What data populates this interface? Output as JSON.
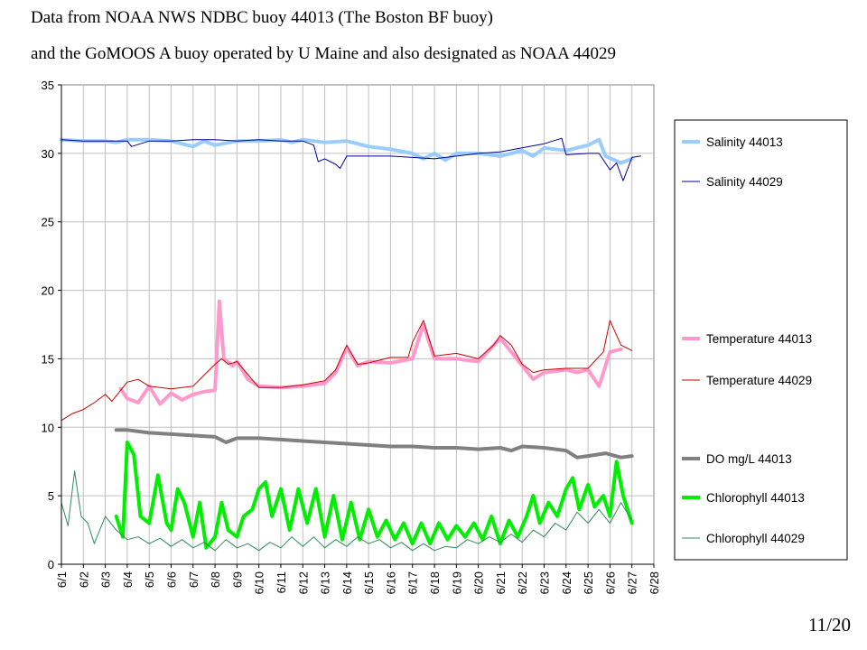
{
  "title_line1": "Data from NOAA NWS NDBC buoy 44013 (The Boston BF buoy)",
  "title_line2": "and the GoMOOS A buoy operated by U Maine and also designated as NOAA 44029",
  "page_number": "11/20",
  "chart_data": {
    "type": "line",
    "ylim": [
      0,
      35
    ],
    "yticks": [
      0,
      5,
      10,
      15,
      20,
      25,
      30,
      35
    ],
    "xticks": [
      "6/1",
      "6/2",
      "6/3",
      "6/4",
      "6/5",
      "6/6",
      "6/7",
      "6/8",
      "6/9",
      "6/10",
      "6/11",
      "6/12",
      "6/13",
      "6/14",
      "6/15",
      "6/16",
      "6/17",
      "6/18",
      "6/19",
      "6/20",
      "6/21",
      "6/22",
      "6/23",
      "6/24",
      "6/25",
      "6/26",
      "6/27",
      "6/28"
    ],
    "grid": true,
    "legend_position": "right",
    "series": [
      {
        "name": "Salinity 44013",
        "color": "#99ccff",
        "width": 4,
        "points": [
          [
            0,
            31.0
          ],
          [
            1,
            30.9
          ],
          [
            2,
            30.9
          ],
          [
            2.5,
            30.8
          ],
          [
            3,
            31.0
          ],
          [
            4,
            31.0
          ],
          [
            5,
            30.9
          ],
          [
            6,
            30.5
          ],
          [
            6.5,
            30.9
          ],
          [
            7,
            30.6
          ],
          [
            8,
            30.9
          ],
          [
            9,
            30.9
          ],
          [
            10,
            31.0
          ],
          [
            10.5,
            30.8
          ],
          [
            11,
            31.0
          ],
          [
            12,
            30.8
          ],
          [
            13,
            30.9
          ],
          [
            14,
            30.5
          ],
          [
            15,
            30.3
          ],
          [
            16,
            30.0
          ],
          [
            16.5,
            29.6
          ],
          [
            17,
            30.0
          ],
          [
            17.5,
            29.5
          ],
          [
            18,
            30.0
          ],
          [
            19,
            30.0
          ],
          [
            20,
            29.8
          ],
          [
            21,
            30.2
          ],
          [
            21.5,
            29.8
          ],
          [
            22,
            30.4
          ],
          [
            23,
            30.2
          ],
          [
            24,
            30.6
          ],
          [
            24.5,
            31.0
          ],
          [
            24.8,
            29.8
          ],
          [
            25.5,
            29.3
          ],
          [
            26,
            29.6
          ]
        ]
      },
      {
        "name": "Salinity 44029",
        "color": "#000099",
        "width": 1,
        "points": [
          [
            0,
            31.0
          ],
          [
            1,
            30.9
          ],
          [
            2,
            30.9
          ],
          [
            3,
            30.9
          ],
          [
            3.2,
            30.5
          ],
          [
            4,
            30.9
          ],
          [
            5,
            30.9
          ],
          [
            6,
            31.0
          ],
          [
            7,
            31.0
          ],
          [
            8,
            30.9
          ],
          [
            9,
            31.0
          ],
          [
            10,
            30.9
          ],
          [
            11,
            30.9
          ],
          [
            11.5,
            30.6
          ],
          [
            11.7,
            29.4
          ],
          [
            12,
            29.6
          ],
          [
            12.5,
            29.2
          ],
          [
            12.7,
            28.9
          ],
          [
            13,
            29.8
          ],
          [
            14,
            29.8
          ],
          [
            15,
            29.8
          ],
          [
            16,
            29.7
          ],
          [
            17,
            29.6
          ],
          [
            18,
            29.8
          ],
          [
            19,
            30.0
          ],
          [
            20,
            30.1
          ],
          [
            21,
            30.4
          ],
          [
            22,
            30.7
          ],
          [
            22.8,
            31.1
          ],
          [
            23,
            29.9
          ],
          [
            24,
            30.0
          ],
          [
            24.5,
            30.0
          ],
          [
            25,
            28.8
          ],
          [
            25.3,
            29.3
          ],
          [
            25.6,
            28.0
          ],
          [
            26,
            29.7
          ],
          [
            26.4,
            29.8
          ]
        ]
      },
      {
        "name": "Temperature 44013",
        "color": "#ff99cc",
        "width": 4,
        "points": [
          [
            2.7,
            12.8
          ],
          [
            3,
            12.1
          ],
          [
            3.5,
            11.8
          ],
          [
            4,
            13.0
          ],
          [
            4.5,
            11.7
          ],
          [
            5,
            12.5
          ],
          [
            5.5,
            12.0
          ],
          [
            6,
            12.4
          ],
          [
            6.5,
            12.6
          ],
          [
            7,
            12.7
          ],
          [
            7.2,
            19.2
          ],
          [
            7.4,
            15.0
          ],
          [
            7.8,
            14.5
          ],
          [
            8,
            14.8
          ],
          [
            8.5,
            13.5
          ],
          [
            9,
            13.0
          ],
          [
            10,
            12.9
          ],
          [
            11,
            13.0
          ],
          [
            12,
            13.2
          ],
          [
            12.5,
            14.0
          ],
          [
            13,
            15.8
          ],
          [
            13.5,
            14.5
          ],
          [
            14,
            14.8
          ],
          [
            15,
            14.7
          ],
          [
            16,
            15.0
          ],
          [
            16.5,
            17.5
          ],
          [
            17,
            15.0
          ],
          [
            18,
            15.0
          ],
          [
            19,
            14.8
          ],
          [
            20,
            16.5
          ],
          [
            21,
            14.5
          ],
          [
            21.5,
            13.5
          ],
          [
            22,
            14.0
          ],
          [
            23,
            14.2
          ],
          [
            23.5,
            14.0
          ],
          [
            24,
            14.2
          ],
          [
            24.5,
            13.0
          ],
          [
            25,
            15.5
          ],
          [
            25.5,
            15.7
          ]
        ]
      },
      {
        "name": "Temperature 44029",
        "color": "#cc0000",
        "width": 1,
        "points": [
          [
            0,
            10.5
          ],
          [
            0.5,
            11.0
          ],
          [
            1,
            11.3
          ],
          [
            1.5,
            11.8
          ],
          [
            2,
            12.4
          ],
          [
            2.3,
            11.9
          ],
          [
            2.7,
            12.7
          ],
          [
            3,
            13.3
          ],
          [
            3.5,
            13.5
          ],
          [
            4,
            13.0
          ],
          [
            5,
            12.8
          ],
          [
            6,
            13.0
          ],
          [
            6.5,
            13.8
          ],
          [
            7,
            14.6
          ],
          [
            7.3,
            15.0
          ],
          [
            7.6,
            14.6
          ],
          [
            8,
            14.8
          ],
          [
            9,
            12.9
          ],
          [
            10,
            12.9
          ],
          [
            11,
            13.1
          ],
          [
            12,
            13.4
          ],
          [
            12.5,
            14.2
          ],
          [
            13,
            16.0
          ],
          [
            13.5,
            14.6
          ],
          [
            14,
            14.7
          ],
          [
            15,
            15.1
          ],
          [
            15.8,
            15.1
          ],
          [
            16,
            16.2
          ],
          [
            16.5,
            17.8
          ],
          [
            17,
            15.2
          ],
          [
            18,
            15.4
          ],
          [
            19,
            15.0
          ],
          [
            19.7,
            16.0
          ],
          [
            20,
            16.7
          ],
          [
            20.5,
            16.0
          ],
          [
            21,
            14.6
          ],
          [
            21.5,
            14.0
          ],
          [
            22,
            14.2
          ],
          [
            23,
            14.3
          ],
          [
            24,
            14.3
          ],
          [
            24.7,
            15.5
          ],
          [
            25,
            17.8
          ],
          [
            25.5,
            16.0
          ],
          [
            26,
            15.6
          ]
        ]
      },
      {
        "name": "DO mg/L 44013",
        "color": "#808080",
        "width": 4,
        "points": [
          [
            2.5,
            9.8
          ],
          [
            3,
            9.8
          ],
          [
            4,
            9.6
          ],
          [
            5,
            9.5
          ],
          [
            6,
            9.4
          ],
          [
            7,
            9.3
          ],
          [
            7.5,
            8.9
          ],
          [
            8,
            9.2
          ],
          [
            9,
            9.2
          ],
          [
            10,
            9.1
          ],
          [
            11,
            9.0
          ],
          [
            12,
            8.9
          ],
          [
            13,
            8.8
          ],
          [
            14,
            8.7
          ],
          [
            15,
            8.6
          ],
          [
            16,
            8.6
          ],
          [
            17,
            8.5
          ],
          [
            18,
            8.5
          ],
          [
            19,
            8.4
          ],
          [
            20,
            8.5
          ],
          [
            20.5,
            8.3
          ],
          [
            21,
            8.6
          ],
          [
            22,
            8.5
          ],
          [
            23,
            8.3
          ],
          [
            23.5,
            7.8
          ],
          [
            24,
            7.9
          ],
          [
            24.8,
            8.1
          ],
          [
            25.5,
            7.8
          ],
          [
            26,
            7.9
          ]
        ]
      },
      {
        "name": "Chlorophyll 44013",
        "color": "#00ee00",
        "width": 4,
        "points": [
          [
            2.5,
            3.5
          ],
          [
            2.8,
            2.0
          ],
          [
            3,
            8.9
          ],
          [
            3.3,
            8.0
          ],
          [
            3.6,
            3.5
          ],
          [
            4,
            3.0
          ],
          [
            4.4,
            6.5
          ],
          [
            4.8,
            3.0
          ],
          [
            5,
            2.5
          ],
          [
            5.3,
            5.5
          ],
          [
            5.6,
            4.5
          ],
          [
            6,
            2.0
          ],
          [
            6.3,
            4.5
          ],
          [
            6.6,
            1.2
          ],
          [
            7,
            2.0
          ],
          [
            7.3,
            4.5
          ],
          [
            7.6,
            2.5
          ],
          [
            8,
            2.0
          ],
          [
            8.3,
            3.5
          ],
          [
            8.7,
            4.0
          ],
          [
            9,
            5.5
          ],
          [
            9.3,
            6.0
          ],
          [
            9.6,
            3.5
          ],
          [
            10,
            5.5
          ],
          [
            10.4,
            2.5
          ],
          [
            10.8,
            5.5
          ],
          [
            11.2,
            3.0
          ],
          [
            11.6,
            5.5
          ],
          [
            12,
            2.0
          ],
          [
            12.4,
            5.0
          ],
          [
            12.8,
            1.8
          ],
          [
            13.2,
            4.5
          ],
          [
            13.6,
            1.8
          ],
          [
            14,
            4.0
          ],
          [
            14.4,
            2.0
          ],
          [
            14.8,
            3.2
          ],
          [
            15.2,
            1.8
          ],
          [
            15.6,
            3.0
          ],
          [
            16,
            1.5
          ],
          [
            16.4,
            3.0
          ],
          [
            16.8,
            1.5
          ],
          [
            17.2,
            3.0
          ],
          [
            17.6,
            1.8
          ],
          [
            18,
            2.8
          ],
          [
            18.4,
            2.0
          ],
          [
            18.8,
            3.0
          ],
          [
            19.2,
            1.8
          ],
          [
            19.6,
            3.5
          ],
          [
            20,
            1.5
          ],
          [
            20.4,
            3.2
          ],
          [
            20.8,
            2.0
          ],
          [
            21.2,
            3.5
          ],
          [
            21.5,
            5.0
          ],
          [
            21.8,
            3.0
          ],
          [
            22.2,
            4.5
          ],
          [
            22.6,
            3.5
          ],
          [
            23,
            5.5
          ],
          [
            23.3,
            6.3
          ],
          [
            23.6,
            4.0
          ],
          [
            24,
            5.8
          ],
          [
            24.3,
            4.2
          ],
          [
            24.7,
            5.0
          ],
          [
            25,
            3.5
          ],
          [
            25.3,
            7.5
          ],
          [
            25.6,
            5.0
          ],
          [
            26,
            3.0
          ]
        ]
      },
      {
        "name": "Chlorophyll 44029",
        "color": "#2e8b57",
        "width": 1,
        "points": [
          [
            0,
            4.5
          ],
          [
            0.3,
            2.8
          ],
          [
            0.6,
            6.8
          ],
          [
            0.9,
            3.5
          ],
          [
            1.2,
            3.0
          ],
          [
            1.5,
            1.5
          ],
          [
            2,
            3.5
          ],
          [
            2.5,
            2.5
          ],
          [
            3,
            1.8
          ],
          [
            3.5,
            2.0
          ],
          [
            4,
            1.5
          ],
          [
            4.5,
            1.9
          ],
          [
            5,
            1.3
          ],
          [
            5.5,
            1.8
          ],
          [
            6,
            1.2
          ],
          [
            6.5,
            1.6
          ],
          [
            7,
            1.0
          ],
          [
            7.5,
            1.8
          ],
          [
            8,
            1.2
          ],
          [
            8.5,
            1.5
          ],
          [
            9,
            1.0
          ],
          [
            9.5,
            1.6
          ],
          [
            10,
            1.2
          ],
          [
            10.5,
            2.0
          ],
          [
            11,
            1.3
          ],
          [
            11.5,
            2.0
          ],
          [
            12,
            1.2
          ],
          [
            12.5,
            1.8
          ],
          [
            13,
            1.3
          ],
          [
            13.5,
            2.0
          ],
          [
            14,
            1.5
          ],
          [
            14.5,
            1.8
          ],
          [
            15,
            1.2
          ],
          [
            15.5,
            1.6
          ],
          [
            16,
            1.0
          ],
          [
            16.5,
            1.5
          ],
          [
            17,
            1.0
          ],
          [
            17.5,
            1.3
          ],
          [
            18,
            1.2
          ],
          [
            18.5,
            1.8
          ],
          [
            19,
            1.5
          ],
          [
            19.5,
            2.0
          ],
          [
            20,
            1.6
          ],
          [
            20.5,
            2.2
          ],
          [
            21,
            1.6
          ],
          [
            21.5,
            2.5
          ],
          [
            22,
            2.0
          ],
          [
            22.5,
            3.0
          ],
          [
            23,
            2.5
          ],
          [
            23.5,
            3.8
          ],
          [
            24,
            3.0
          ],
          [
            24.5,
            4.0
          ],
          [
            25,
            3.0
          ],
          [
            25.5,
            4.5
          ],
          [
            26,
            3.2
          ]
        ]
      }
    ]
  }
}
